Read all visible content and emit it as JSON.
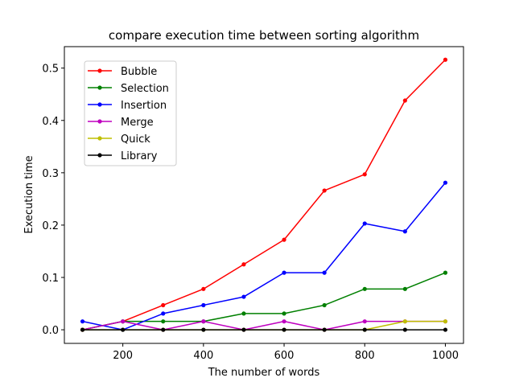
{
  "chart_data": {
    "type": "line",
    "title": "compare execution time between sorting algorithm",
    "xlabel": "The number of words",
    "ylabel": "Execution time",
    "xlim": [
      55,
      1045
    ],
    "ylim": [
      -0.026,
      0.541
    ],
    "xticks": [
      200,
      400,
      600,
      800,
      1000
    ],
    "yticks": [
      0.0,
      0.1,
      0.2,
      0.3,
      0.4,
      0.5
    ],
    "ytick_labels": [
      "0.0",
      "0.1",
      "0.2",
      "0.3",
      "0.4",
      "0.5"
    ],
    "grid": false,
    "legend": "upper-left",
    "x": [
      100,
      200,
      300,
      400,
      500,
      600,
      700,
      800,
      900,
      1000
    ],
    "series": [
      {
        "name": "Bubble",
        "color": "#ff0000",
        "values": [
          0.0,
          0.016,
          0.047,
          0.078,
          0.125,
          0.172,
          0.266,
          0.297,
          0.438,
          0.516
        ]
      },
      {
        "name": "Selection",
        "color": "#008000",
        "values": [
          0.0,
          0.016,
          0.016,
          0.016,
          0.031,
          0.031,
          0.047,
          0.078,
          0.078,
          0.109
        ]
      },
      {
        "name": "Insertion",
        "color": "#0000ff",
        "values": [
          0.016,
          0.0,
          0.031,
          0.047,
          0.063,
          0.109,
          0.109,
          0.203,
          0.188,
          0.281
        ]
      },
      {
        "name": "Merge",
        "color": "#bf00bf",
        "values": [
          0.0,
          0.016,
          0.0,
          0.016,
          0.0,
          0.016,
          0.0,
          0.016,
          0.016,
          0.016
        ]
      },
      {
        "name": "Quick",
        "color": "#bfbf00",
        "values": [
          0.0,
          0.0,
          0.0,
          0.0,
          0.0,
          0.0,
          0.0,
          0.0,
          0.016,
          0.016
        ]
      },
      {
        "name": "Library",
        "color": "#000000",
        "values": [
          0.0,
          0.0,
          0.0,
          0.0,
          0.0,
          0.0,
          0.0,
          0.0,
          0.0,
          0.0
        ]
      }
    ]
  }
}
